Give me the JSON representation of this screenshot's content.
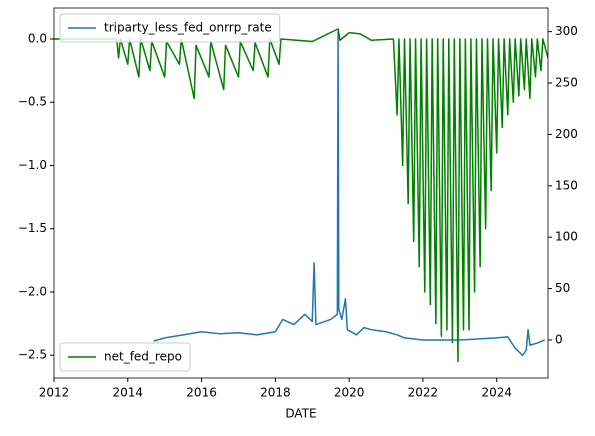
{
  "chart_data": {
    "type": "line",
    "xlabel": "DATE",
    "xlim": [
      2012,
      2025.39
    ],
    "xticks": [
      2012,
      2014,
      2016,
      2018,
      2020,
      2022,
      2024
    ],
    "ylim": [
      -2.68,
      0.245
    ],
    "yticks": [
      {
        "value": 0,
        "label": "0.0"
      },
      {
        "value": -0.5,
        "label": "−0.5"
      },
      {
        "value": -1,
        "label": "−1.0"
      },
      {
        "value": -1.5,
        "label": "−1.5"
      },
      {
        "value": -2,
        "label": "−2.0"
      },
      {
        "value": -2.5,
        "label": "−2.5"
      }
    ],
    "y2lim": [
      -37,
      323
    ],
    "y2ticks": [
      0,
      50,
      100,
      150,
      200,
      250,
      300
    ],
    "series": [
      {
        "name": "triparty_less_fed_onrrp_rate",
        "color": "#1f77b4",
        "axis": "y2",
        "legend": "upper left",
        "x": [
          2014.7,
          2015.0,
          2015.5,
          2016.0,
          2016.5,
          2017.0,
          2017.5,
          2018.0,
          2018.2,
          2018.5,
          2018.8,
          2019.0,
          2019.05,
          2019.1,
          2019.5,
          2019.68,
          2019.7,
          2019.72,
          2019.8,
          2019.9,
          2019.95,
          2020.2,
          2020.4,
          2020.6,
          2021.0,
          2021.3,
          2021.5,
          2022.0,
          2023.0,
          2024.0,
          2024.3,
          2024.5,
          2024.7,
          2024.8,
          2024.85,
          2024.9,
          2025.1,
          2025.3
        ],
        "values": [
          -1,
          2,
          5,
          8,
          6,
          7,
          5,
          8,
          20,
          15,
          25,
          18,
          75,
          15,
          20,
          25,
          300,
          30,
          20,
          40,
          10,
          5,
          12,
          10,
          8,
          5,
          2,
          0,
          0,
          2,
          3,
          -8,
          -15,
          -10,
          10,
          -5,
          -3,
          0
        ]
      },
      {
        "name": "net_fed_repo",
        "color": "#008000",
        "axis": "y",
        "legend": "lower left",
        "x": [
          2012.0,
          2013.7,
          2013.75,
          2013.8,
          2014.0,
          2014.05,
          2014.3,
          2014.35,
          2014.6,
          2014.65,
          2015.0,
          2015.05,
          2015.4,
          2015.45,
          2015.8,
          2015.85,
          2016.2,
          2016.25,
          2016.6,
          2016.65,
          2017.0,
          2017.05,
          2017.4,
          2017.45,
          2017.8,
          2017.85,
          2018.1,
          2018.15,
          2019.0,
          2019.7,
          2019.75,
          2020.0,
          2020.3,
          2020.6,
          2021.2,
          2021.3,
          2021.35,
          2021.45,
          2021.5,
          2021.6,
          2021.65,
          2021.75,
          2021.8,
          2021.9,
          2021.95,
          2022.05,
          2022.1,
          2022.2,
          2022.25,
          2022.35,
          2022.4,
          2022.5,
          2022.55,
          2022.65,
          2022.7,
          2022.8,
          2022.85,
          2022.95,
          2023.0,
          2023.1,
          2023.15,
          2023.25,
          2023.3,
          2023.4,
          2023.45,
          2023.55,
          2023.6,
          2023.7,
          2023.75,
          2023.85,
          2023.9,
          2024.0,
          2024.05,
          2024.15,
          2024.2,
          2024.3,
          2024.35,
          2024.45,
          2024.5,
          2024.6,
          2024.65,
          2024.75,
          2024.8,
          2024.9,
          2024.95,
          2025.05,
          2025.1,
          2025.2,
          2025.25,
          2025.39
        ],
        "values": [
          0,
          0,
          -0.15,
          0,
          -0.2,
          0,
          -0.3,
          0,
          -0.25,
          -0.02,
          -0.3,
          -0.02,
          -0.2,
          0,
          -0.47,
          -0.05,
          -0.3,
          -0.02,
          -0.4,
          -0.05,
          -0.3,
          -0.02,
          -0.25,
          -0.03,
          -0.3,
          0,
          -0.2,
          0,
          -0.02,
          0.08,
          -0.01,
          0.05,
          0.04,
          -0.01,
          0,
          -0.6,
          0,
          -1.0,
          0,
          -1.3,
          0,
          -1.6,
          0,
          -1.8,
          0,
          -2.0,
          0,
          -2.1,
          0,
          -2.25,
          0,
          -2.35,
          0,
          -2.3,
          0,
          -2.4,
          0,
          -2.55,
          0,
          -2.3,
          0,
          -2.3,
          0,
          -2.0,
          0,
          -1.8,
          0,
          -1.5,
          0,
          -1.2,
          0,
          -0.9,
          0,
          -0.7,
          0,
          -0.6,
          0,
          -0.5,
          0,
          -0.45,
          0,
          -0.4,
          0,
          -0.47,
          0,
          -0.3,
          0,
          -0.25,
          0,
          -0.15
        ]
      }
    ]
  }
}
